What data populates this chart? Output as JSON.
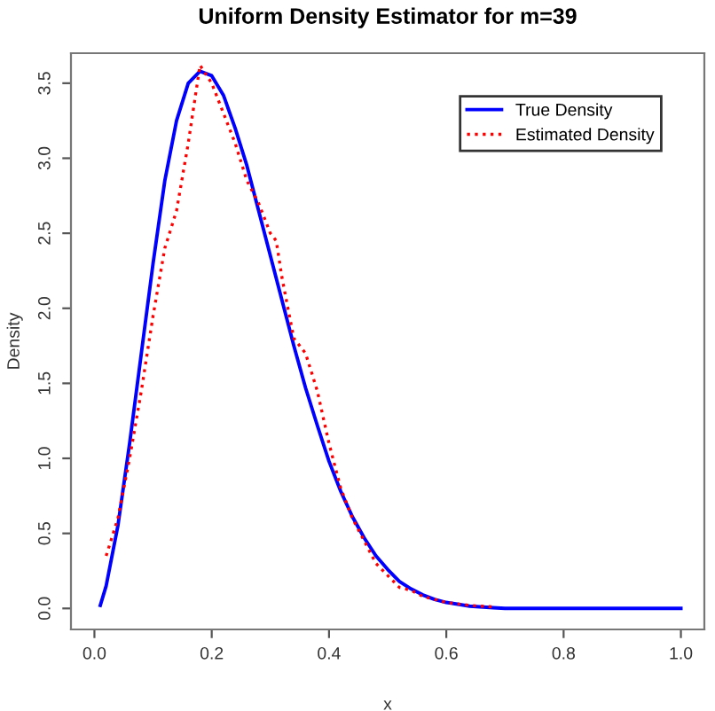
{
  "chart_data": {
    "type": "line",
    "title": "Uniform Density Estimator for m=39",
    "xlabel": "x",
    "ylabel": "Density",
    "xlim": [
      -0.04,
      1.04
    ],
    "ylim": [
      -0.14,
      3.7
    ],
    "xticks": [
      {
        "value": 0,
        "label": "0.0"
      },
      0.2,
      0.4,
      0.6,
      0.8,
      {
        "value": 1,
        "label": "1.0"
      }
    ],
    "yticks": [
      {
        "value": 0,
        "label": "0.0"
      },
      0.5,
      {
        "value": 1,
        "label": "1.0"
      },
      1.5,
      {
        "value": 2,
        "label": "2.0"
      },
      2.5,
      {
        "value": 3,
        "label": "3.0"
      },
      3.5
    ],
    "grid": false,
    "legend": "top right",
    "series": [
      {
        "name": "True Density",
        "color": "#0000ff",
        "line_style": "solid",
        "x": [
          0.01,
          0.02,
          0.04,
          0.06,
          0.08,
          0.1,
          0.12,
          0.14,
          0.16,
          0.18,
          0.2,
          0.22,
          0.24,
          0.26,
          0.28,
          0.3,
          0.32,
          0.34,
          0.36,
          0.38,
          0.4,
          0.42,
          0.44,
          0.46,
          0.48,
          0.5,
          0.52,
          0.54,
          0.56,
          0.58,
          0.6,
          0.64,
          0.68,
          0.7,
          0.8,
          0.9,
          1.0
        ],
        "values": [
          0.02,
          0.15,
          0.55,
          1.1,
          1.7,
          2.3,
          2.85,
          3.25,
          3.5,
          3.58,
          3.55,
          3.42,
          3.2,
          2.95,
          2.65,
          2.35,
          2.05,
          1.75,
          1.47,
          1.22,
          0.98,
          0.78,
          0.61,
          0.47,
          0.35,
          0.26,
          0.18,
          0.13,
          0.09,
          0.06,
          0.04,
          0.015,
          0.005,
          0,
          0,
          0,
          0
        ]
      },
      {
        "name": "Estimated Density",
        "color": "#ff0000",
        "line_style": "dotted",
        "x": [
          0.02,
          0.04,
          0.06,
          0.08,
          0.1,
          0.12,
          0.14,
          0.16,
          0.18,
          0.2,
          0.22,
          0.24,
          0.26,
          0.28,
          0.3,
          0.31,
          0.32,
          0.34,
          0.36,
          0.38,
          0.4,
          0.42,
          0.44,
          0.46,
          0.48,
          0.5,
          0.52,
          0.54,
          0.56,
          0.6,
          0.64,
          0.68
        ],
        "values": [
          0.35,
          0.6,
          1.0,
          1.45,
          1.95,
          2.4,
          2.65,
          3.1,
          3.62,
          3.5,
          3.3,
          3.1,
          2.85,
          2.7,
          2.5,
          2.45,
          2.2,
          1.8,
          1.7,
          1.45,
          1.1,
          0.8,
          0.6,
          0.45,
          0.3,
          0.22,
          0.14,
          0.12,
          0.08,
          0.04,
          0.02,
          0.01
        ]
      }
    ]
  }
}
